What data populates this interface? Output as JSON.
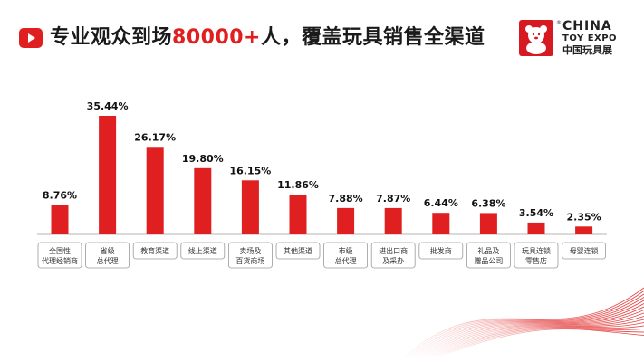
{
  "header": {
    "title_pre": "专业观众到场",
    "title_number": "80000+",
    "title_post": "人，覆盖玩具销售全渠道",
    "icon": "play-icon"
  },
  "logo": {
    "line1": "CHINA",
    "line2": "TOY EXPO",
    "line3": "中国玩具展",
    "registered": "®"
  },
  "colors": {
    "bar": "#e02020",
    "accent": "#e02020"
  },
  "chart_data": {
    "type": "bar",
    "categories": [
      [
        "全国性",
        "代理经销商"
      ],
      [
        "省级",
        "总代理"
      ],
      [
        "教育渠道"
      ],
      [
        "线上渠道"
      ],
      [
        "卖场及",
        "百货商场"
      ],
      [
        "其他渠道"
      ],
      [
        "市级",
        "总代理"
      ],
      [
        "进出口商",
        "及采办"
      ],
      [
        "批发商"
      ],
      [
        "礼品及",
        "赠品公司"
      ],
      [
        "玩具连锁",
        "零售店"
      ],
      [
        "母婴连锁"
      ]
    ],
    "values": [
      8.76,
      35.44,
      26.17,
      19.8,
      16.15,
      11.86,
      7.88,
      7.87,
      6.44,
      6.38,
      3.54,
      2.35
    ],
    "labels": [
      "8.76%",
      "35.44%",
      "26.17%",
      "19.80%",
      "16.15%",
      "11.86%",
      "7.88%",
      "7.87%",
      "6.44%",
      "6.38%",
      "3.54%",
      "2.35%"
    ],
    "ylim": [
      0,
      35.44
    ],
    "grid": false,
    "legend": "none"
  }
}
